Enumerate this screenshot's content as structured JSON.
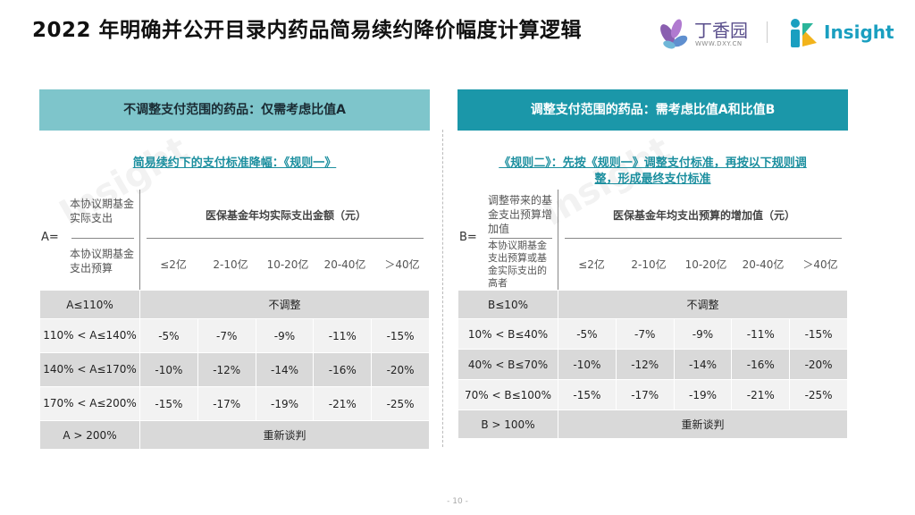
{
  "title": "2022 年明确并公开目录内药品简易续约降价幅度计算逻辑",
  "logos": {
    "dxy_name": "丁香园",
    "dxy_url": "WWW.DXY.CN",
    "insight": "Insight"
  },
  "left": {
    "banner": "不调整支付范围的药品：仅需考虑比值A",
    "rule": "简易续约下的支付标准降幅：《规则一》",
    "eq_label": "A=",
    "numerator": "本协议期基金实际支出",
    "denominator": "本协议期基金支出预算",
    "col_header": "医保基金年均实际支出金额（元）",
    "bands": [
      "≤2亿",
      "2-10亿",
      "10-20亿",
      "20-40亿",
      "＞40亿"
    ],
    "rows": [
      {
        "label": "A≤110%",
        "merged": "不调整"
      },
      {
        "label": "110% < A≤140%",
        "values": [
          "-5%",
          "-7%",
          "-9%",
          "-11%",
          "-15%"
        ]
      },
      {
        "label": "140% < A≤170%",
        "values": [
          "-10%",
          "-12%",
          "-14%",
          "-16%",
          "-20%"
        ]
      },
      {
        "label": "170% < A≤200%",
        "values": [
          "-15%",
          "-17%",
          "-19%",
          "-21%",
          "-25%"
        ]
      },
      {
        "label": "A > 200%",
        "merged": "重新谈判"
      }
    ]
  },
  "right": {
    "banner": "调整支付范围的药品：需考虑比值A和比值B",
    "rule": "《规则二》：先按《规则一》调整支付标准，再按以下规则调整，形成最终支付标准",
    "eq_label": "B=",
    "numerator": "调整带来的基金支出预算增加值",
    "denominator": "本协议期基金支出预算或基金实际支出的高者",
    "col_header": "医保基金年均支出预算的增加值（元）",
    "bands": [
      "≤2亿",
      "2-10亿",
      "10-20亿",
      "20-40亿",
      "＞40亿"
    ],
    "rows": [
      {
        "label": "B≤10%",
        "merged": "不调整"
      },
      {
        "label": "10% < B≤40%",
        "values": [
          "-5%",
          "-7%",
          "-9%",
          "-11%",
          "-15%"
        ]
      },
      {
        "label": "40% < B≤70%",
        "values": [
          "-10%",
          "-12%",
          "-14%",
          "-16%",
          "-20%"
        ]
      },
      {
        "label": "70% < B≤100%",
        "values": [
          "-15%",
          "-17%",
          "-19%",
          "-21%",
          "-25%"
        ]
      },
      {
        "label": "B > 100%",
        "merged": "重新谈判"
      }
    ]
  },
  "watermark": "Insight",
  "page_number": "- 10 -",
  "colors": {
    "banner_left": "#7ec5cb",
    "banner_right": "#1b97a9",
    "rule_text": "#1c8f9f",
    "row_dark": "#d9d9d9",
    "row_light": "#f2f2f2"
  }
}
